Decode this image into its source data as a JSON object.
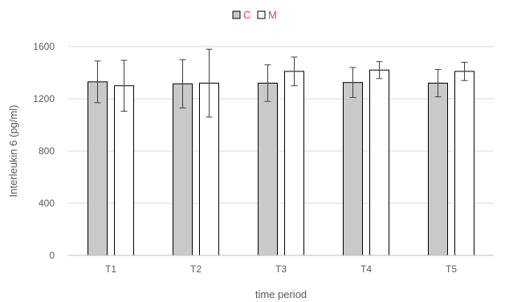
{
  "chart_data": {
    "type": "bar",
    "categories": [
      "T1",
      "T2",
      "T3",
      "T4",
      "T5"
    ],
    "series": [
      {
        "name": "C",
        "values": [
          1330,
          1315,
          1320,
          1325,
          1320
        ],
        "errors": [
          160,
          185,
          140,
          115,
          105
        ],
        "fill": "#c9c9c9"
      },
      {
        "name": "M",
        "values": [
          1300,
          1320,
          1410,
          1420,
          1410
        ],
        "errors": [
          195,
          260,
          110,
          65,
          70
        ],
        "fill": "#ffffff"
      }
    ],
    "xlabel": "time period",
    "ylabel": "Interleukin 6 (pg/ml)",
    "ylim": [
      0,
      1600
    ],
    "yticks": [
      0,
      400,
      800,
      1200,
      1600
    ],
    "grid": true,
    "legend_position": "top-center",
    "legend_text_color": "#e0434b",
    "axis_text_color": "#595959",
    "grid_color": "#d9d9d9"
  }
}
